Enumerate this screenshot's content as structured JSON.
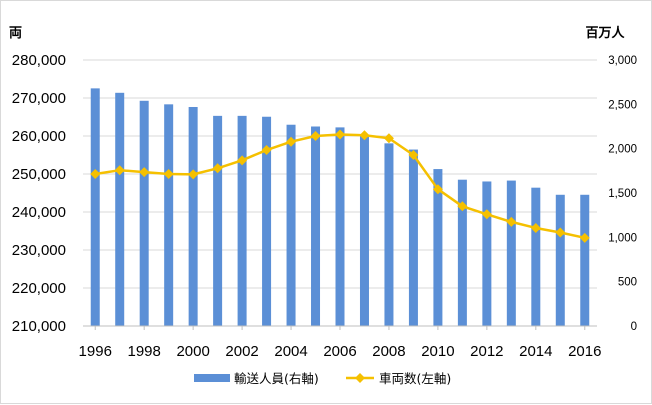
{
  "chart_data": {
    "type": "bar+line",
    "left_unit": "両",
    "right_unit": "百万人",
    "x": [
      1996,
      1997,
      1998,
      1999,
      2000,
      2001,
      2002,
      2003,
      2004,
      2005,
      2006,
      2007,
      2008,
      2009,
      2010,
      2011,
      2012,
      2013,
      2014,
      2015,
      2016
    ],
    "x_tick_labels": [
      "1996",
      "1998",
      "2000",
      "2002",
      "2004",
      "2006",
      "2008",
      "2010",
      "2012",
      "2014",
      "2016"
    ],
    "left_axis": {
      "ylim": [
        210000,
        280000
      ],
      "ticks": [
        210000,
        220000,
        230000,
        240000,
        250000,
        260000,
        270000,
        280000
      ],
      "tick_labels": [
        "210,000",
        "220,000",
        "230,000",
        "240,000",
        "250,000",
        "260,000",
        "270,000",
        "280,000"
      ]
    },
    "right_axis": {
      "ylim": [
        0,
        3000
      ],
      "ticks": [
        0,
        500,
        1000,
        1500,
        2000,
        2500,
        3000
      ],
      "tick_labels": [
        "0",
        "500",
        "1,000",
        "1,500",
        "2,000",
        "2,500",
        "3,000"
      ]
    },
    "series": [
      {
        "name": "輸送人員(右軸)",
        "type": "bar",
        "axis": "right",
        "color": "#5b8fd6",
        "values": [
          2680,
          2630,
          2540,
          2500,
          2470,
          2370,
          2370,
          2360,
          2270,
          2250,
          2240,
          2150,
          2060,
          1990,
          1770,
          1650,
          1630,
          1640,
          1560,
          1480,
          1480
        ]
      },
      {
        "name": "車両数(左軸)",
        "type": "line",
        "axis": "left",
        "color": "#f5c000",
        "values": [
          250000,
          251000,
          250500,
          250000,
          249900,
          251500,
          253600,
          256300,
          258500,
          260000,
          260400,
          260200,
          259400,
          255000,
          246000,
          241500,
          239400,
          237400,
          235800,
          234600,
          233200
        ]
      }
    ],
    "legend_position": "bottom",
    "grid": "horizontal"
  }
}
